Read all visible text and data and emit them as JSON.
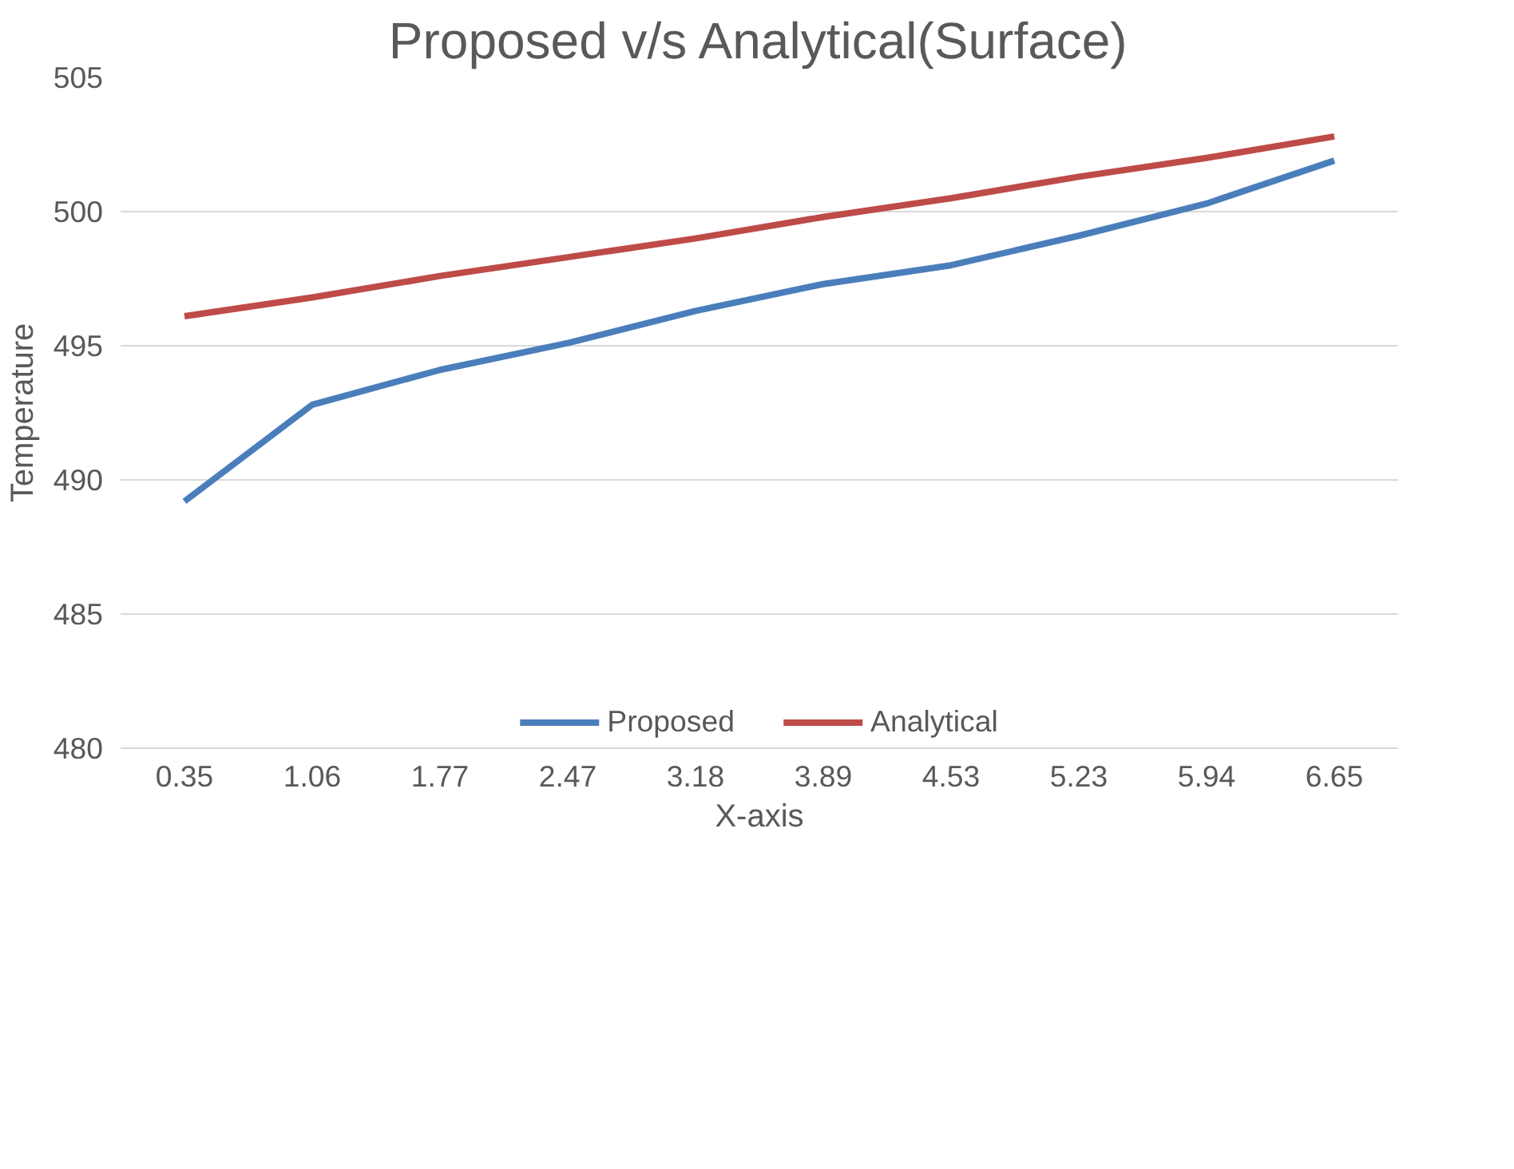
{
  "chart_data": {
    "type": "line",
    "title": "Proposed v/s Analytical(Surface)",
    "xlabel": "X-axis",
    "ylabel": "Temperature",
    "categories": [
      "0.35",
      "1.06",
      "1.77",
      "2.47",
      "3.18",
      "3.89",
      "4.53",
      "5.23",
      "5.94",
      "6.65"
    ],
    "series": [
      {
        "name": "Proposed",
        "color": "#4a7ebb",
        "values": [
          489.2,
          492.8,
          494.1,
          495.1,
          496.3,
          497.3,
          498.0,
          499.1,
          500.3,
          501.9
        ]
      },
      {
        "name": "Analytical",
        "color": "#be4b48",
        "values": [
          496.1,
          496.8,
          497.6,
          498.3,
          499.0,
          499.8,
          500.5,
          501.3,
          502.0,
          502.8
        ]
      }
    ],
    "ylim": [
      480,
      505
    ],
    "yticks": [
      480,
      485,
      490,
      495,
      500,
      505
    ],
    "grid": "y",
    "legend": "bottom",
    "marker": "none",
    "line_style": "solid"
  }
}
